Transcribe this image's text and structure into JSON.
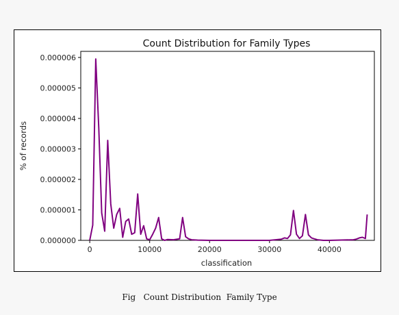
{
  "figure": {
    "caption": "Fig   Count Distribution  Family Type"
  },
  "chart_data": {
    "type": "line",
    "title": "Count Distribution for Family Types",
    "xlabel": "classification",
    "ylabel": "% of records",
    "xlim": [
      -1500,
      47500
    ],
    "ylim": [
      0,
      6.2e-06
    ],
    "x_ticks": [
      0,
      10000,
      20000,
      30000,
      40000
    ],
    "x_tick_labels": [
      "0",
      "10000",
      "20000",
      "30000",
      "40000"
    ],
    "y_ticks": [
      0,
      1e-06,
      2e-06,
      3e-06,
      4e-06,
      5e-06,
      6e-06
    ],
    "y_tick_labels": [
      "0.000000",
      "0.000001",
      "0.000002",
      "0.000003",
      "0.000004",
      "0.000005",
      "0.000006"
    ],
    "grid": false,
    "line_color": "#800080",
    "x": [
      0,
      500,
      1000,
      1500,
      2000,
      2500,
      3000,
      3500,
      4000,
      4500,
      5000,
      5500,
      6000,
      6500,
      7000,
      7500,
      8000,
      8500,
      9000,
      9500,
      10000,
      10500,
      11000,
      11500,
      12000,
      12500,
      13000,
      14000,
      15000,
      15500,
      16000,
      16500,
      17000,
      18000,
      20000,
      25000,
      30000,
      31000,
      32000,
      32500,
      33000,
      33500,
      34000,
      34500,
      35000,
      35500,
      36000,
      36500,
      37000,
      37500,
      38000,
      39000,
      40000,
      44000,
      44500,
      45000,
      45500,
      46000,
      46300
    ],
    "y": [
      0,
      5e-07,
      5.95e-06,
      3.7e-06,
      9e-07,
      3e-07,
      3.28e-06,
      1.2e-06,
      4e-07,
      8.5e-07,
      1.05e-06,
      1e-07,
      6.2e-07,
      7e-07,
      2e-07,
      2.5e-07,
      1.52e-06,
      2e-07,
      4.8e-07,
      5e-08,
      2e-08,
      2e-07,
      4e-07,
      7.5e-07,
      5e-08,
      0.0,
      3e-08,
      2e-08,
      5e-08,
      7.5e-07,
      1.2e-07,
      5e-08,
      2e-08,
      1e-08,
      0.0,
      0.0,
      0.0,
      2e-08,
      4e-08,
      8e-08,
      6e-08,
      1.8e-07,
      9.8e-07,
      2e-07,
      6e-08,
      1.5e-07,
      8.5e-07,
      1.8e-07,
      8e-08,
      5e-08,
      2e-08,
      0.0,
      0.0,
      2e-08,
      4e-08,
      8e-08,
      1e-07,
      6e-08,
      8.5e-07
    ]
  }
}
